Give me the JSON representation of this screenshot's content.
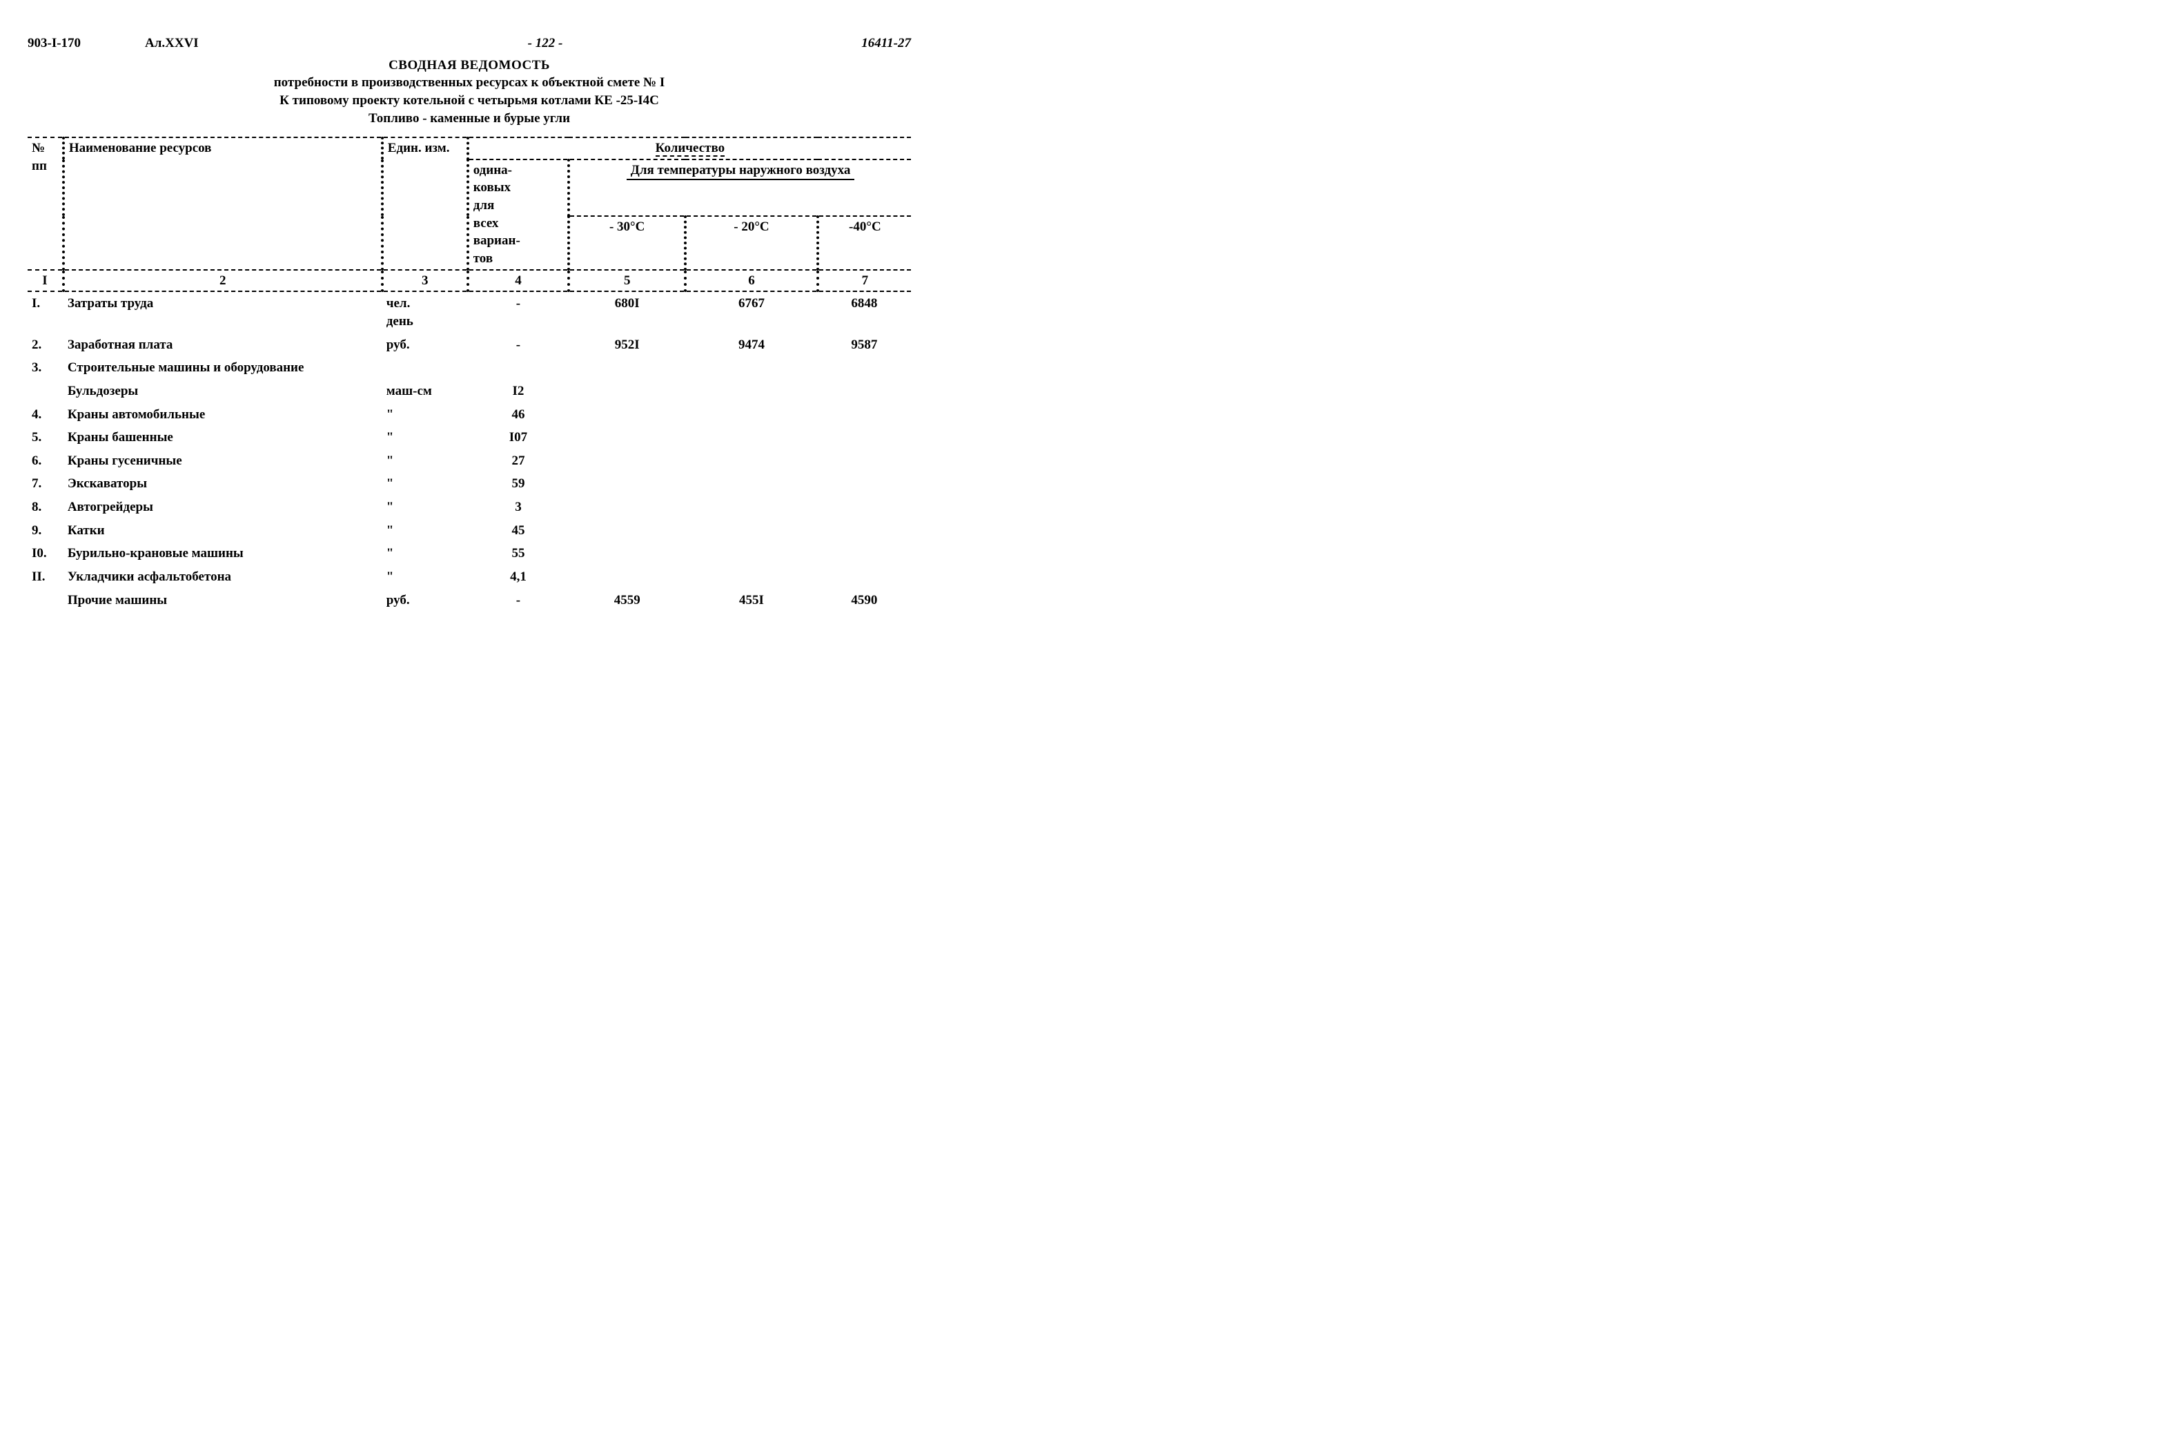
{
  "header": {
    "doc_code": "903-I-170",
    "album": "Ал.XXVI",
    "page_num": "- 122 -",
    "doc_num": "16411-27"
  },
  "title": {
    "main": "СВОДНАЯ ВЕДОМОСТЬ",
    "l1": "потребности в производственных ресурсах к объектной смете № I",
    "l2": "К типовому проекту котельной с четырьмя котлами КЕ -25-I4С",
    "l3": "Топливо - каменные и бурые угли"
  },
  "thead": {
    "num": "№ пп",
    "name": "Наименование ресурсов",
    "unit": "Един. изм.",
    "qty": "Количество",
    "all": "одина-\nковых\nдля\nвсех\nвариан-\nтов",
    "temp": "Для температуры наружного воздуха",
    "t30": "- 30°С",
    "t20": "- 20°С",
    "t40": "-40°С",
    "cn1": "I",
    "cn2": "2",
    "cn3": "3",
    "cn4": "4",
    "cn5": "5",
    "cn6": "6",
    "cn7": "7"
  },
  "rows": [
    {
      "n": "I.",
      "name": "Затраты труда",
      "unit": "чел.\nдень",
      "all": "-",
      "t30": "680I",
      "t20": "6767",
      "t40": "6848"
    },
    {
      "n": "2.",
      "name": "Заработная плата",
      "unit": "руб.",
      "all": "-",
      "t30": "952I",
      "t20": "9474",
      "t40": "9587"
    },
    {
      "n": "3.",
      "name": "Строительные машины и оборудование",
      "unit": "",
      "all": "",
      "t30": "",
      "t20": "",
      "t40": ""
    },
    {
      "n": "",
      "name": "Бульдозеры",
      "unit": "маш-см",
      "all": "I2",
      "t30": "",
      "t20": "",
      "t40": ""
    },
    {
      "n": "4.",
      "name": "Краны автомобильные",
      "unit": "\"",
      "all": "46",
      "t30": "",
      "t20": "",
      "t40": ""
    },
    {
      "n": "5.",
      "name": "Краны башенные",
      "unit": "\"",
      "all": "I07",
      "t30": "",
      "t20": "",
      "t40": ""
    },
    {
      "n": "6.",
      "name": "Краны гусеничные",
      "unit": "\"",
      "all": "27",
      "t30": "",
      "t20": "",
      "t40": ""
    },
    {
      "n": "7.",
      "name": "Экскаваторы",
      "unit": "\"",
      "all": "59",
      "t30": "",
      "t20": "",
      "t40": ""
    },
    {
      "n": "8.",
      "name": "Автогрейдеры",
      "unit": "\"",
      "all": "3",
      "t30": "",
      "t20": "",
      "t40": ""
    },
    {
      "n": "9.",
      "name": "Катки",
      "unit": "\"",
      "all": "45",
      "t30": "",
      "t20": "",
      "t40": ""
    },
    {
      "n": "I0.",
      "name": "Бурильно-крановые машины",
      "unit": "\"",
      "all": "55",
      "t30": "",
      "t20": "",
      "t40": ""
    },
    {
      "n": "II.",
      "name": "Укладчики асфальтобетона",
      "unit": "\"",
      "all": "4,1",
      "t30": "",
      "t20": "",
      "t40": ""
    },
    {
      "n": "",
      "name": "Прочие машины",
      "unit": "руб.",
      "all": "-",
      "t30": "4559",
      "t20": "455I",
      "t40": "4590"
    }
  ]
}
